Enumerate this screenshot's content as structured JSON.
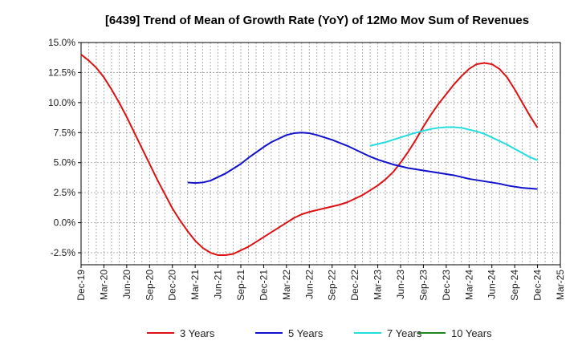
{
  "chart_data": {
    "type": "line",
    "title": "[6439]  Trend of Mean of Growth Rate (YoY) of 12Mo Mov Sum of Revenues",
    "xlabel": "",
    "ylabel": "",
    "x_tick_labels": [
      "Dec-19",
      "Mar-20",
      "Jun-20",
      "Sep-20",
      "Dec-20",
      "Mar-21",
      "Jun-21",
      "Sep-21",
      "Dec-21",
      "Mar-22",
      "Jun-22",
      "Sep-22",
      "Dec-22",
      "Mar-23",
      "Jun-23",
      "Sep-23",
      "Dec-23",
      "Mar-24",
      "Jun-24",
      "Sep-24",
      "Dec-24",
      "Mar-25"
    ],
    "y_tick_labels": [
      "15.0%",
      "12.5%",
      "10.0%",
      "7.5%",
      "5.0%",
      "2.5%",
      "0.0%",
      "-2.5%"
    ],
    "y_ticks": [
      15.0,
      12.5,
      10.0,
      7.5,
      5.0,
      2.5,
      0.0,
      -2.5
    ],
    "ylim": [
      -3.5,
      15.0
    ],
    "x_range_months": [
      0,
      63
    ],
    "grid": true,
    "legend_position": "bottom",
    "series": [
      {
        "name": "3 Years",
        "color": "#dd1111",
        "points": [
          [
            0,
            14.0
          ],
          [
            1,
            13.5
          ],
          [
            2,
            12.9
          ],
          [
            3,
            12.1
          ],
          [
            4,
            11.1
          ],
          [
            5,
            10.0
          ],
          [
            6,
            8.8
          ],
          [
            7,
            7.5
          ],
          [
            8,
            6.2
          ],
          [
            9,
            4.9
          ],
          [
            10,
            3.6
          ],
          [
            11,
            2.4
          ],
          [
            12,
            1.2
          ],
          [
            13,
            0.2
          ],
          [
            14,
            -0.7
          ],
          [
            15,
            -1.5
          ],
          [
            16,
            -2.1
          ],
          [
            17,
            -2.5
          ],
          [
            18,
            -2.7
          ],
          [
            19,
            -2.7
          ],
          [
            20,
            -2.6
          ],
          [
            21,
            -2.3
          ],
          [
            22,
            -2.0
          ],
          [
            23,
            -1.6
          ],
          [
            24,
            -1.2
          ],
          [
            25,
            -0.8
          ],
          [
            26,
            -0.4
          ],
          [
            27,
            0.0
          ],
          [
            28,
            0.4
          ],
          [
            29,
            0.7
          ],
          [
            30,
            0.9
          ],
          [
            31,
            1.05
          ],
          [
            32,
            1.2
          ],
          [
            33,
            1.35
          ],
          [
            34,
            1.5
          ],
          [
            35,
            1.7
          ],
          [
            36,
            2.0
          ],
          [
            37,
            2.3
          ],
          [
            38,
            2.7
          ],
          [
            39,
            3.1
          ],
          [
            40,
            3.6
          ],
          [
            41,
            4.2
          ],
          [
            42,
            5.0
          ],
          [
            43,
            5.9
          ],
          [
            44,
            6.9
          ],
          [
            45,
            8.0
          ],
          [
            46,
            9.0
          ],
          [
            47,
            9.9
          ],
          [
            48,
            10.7
          ],
          [
            49,
            11.5
          ],
          [
            50,
            12.2
          ],
          [
            51,
            12.8
          ],
          [
            52,
            13.2
          ],
          [
            53,
            13.3
          ],
          [
            54,
            13.2
          ],
          [
            55,
            12.8
          ],
          [
            56,
            12.1
          ],
          [
            57,
            11.1
          ],
          [
            58,
            10.0
          ],
          [
            59,
            8.9
          ],
          [
            60,
            7.9
          ]
        ]
      },
      {
        "name": "5 Years",
        "color": "#1111cc",
        "points": [
          [
            14,
            3.35
          ],
          [
            15,
            3.3
          ],
          [
            16,
            3.35
          ],
          [
            17,
            3.5
          ],
          [
            18,
            3.8
          ],
          [
            19,
            4.1
          ],
          [
            20,
            4.5
          ],
          [
            21,
            4.9
          ],
          [
            22,
            5.4
          ],
          [
            23,
            5.85
          ],
          [
            24,
            6.3
          ],
          [
            25,
            6.7
          ],
          [
            26,
            7.0
          ],
          [
            27,
            7.3
          ],
          [
            28,
            7.45
          ],
          [
            29,
            7.5
          ],
          [
            30,
            7.45
          ],
          [
            31,
            7.3
          ],
          [
            32,
            7.1
          ],
          [
            33,
            6.9
          ],
          [
            34,
            6.65
          ],
          [
            35,
            6.4
          ],
          [
            36,
            6.1
          ],
          [
            37,
            5.8
          ],
          [
            38,
            5.5
          ],
          [
            39,
            5.25
          ],
          [
            40,
            5.05
          ],
          [
            41,
            4.85
          ],
          [
            42,
            4.7
          ],
          [
            43,
            4.55
          ],
          [
            44,
            4.45
          ],
          [
            45,
            4.35
          ],
          [
            46,
            4.25
          ],
          [
            47,
            4.15
          ],
          [
            48,
            4.05
          ],
          [
            49,
            3.95
          ],
          [
            50,
            3.8
          ],
          [
            51,
            3.65
          ],
          [
            52,
            3.55
          ],
          [
            53,
            3.45
          ],
          [
            54,
            3.35
          ],
          [
            55,
            3.25
          ],
          [
            56,
            3.1
          ],
          [
            57,
            3.0
          ],
          [
            58,
            2.9
          ],
          [
            59,
            2.85
          ],
          [
            60,
            2.8
          ]
        ]
      },
      {
        "name": "7 Years",
        "color": "#22dddd",
        "points": [
          [
            38,
            6.4
          ],
          [
            39,
            6.55
          ],
          [
            40,
            6.7
          ],
          [
            41,
            6.9
          ],
          [
            42,
            7.1
          ],
          [
            43,
            7.3
          ],
          [
            44,
            7.5
          ],
          [
            45,
            7.65
          ],
          [
            46,
            7.8
          ],
          [
            47,
            7.9
          ],
          [
            48,
            7.95
          ],
          [
            49,
            7.95
          ],
          [
            50,
            7.9
          ],
          [
            51,
            7.75
          ],
          [
            52,
            7.6
          ],
          [
            53,
            7.4
          ],
          [
            54,
            7.1
          ],
          [
            55,
            6.8
          ],
          [
            56,
            6.5
          ],
          [
            57,
            6.15
          ],
          [
            58,
            5.8
          ],
          [
            59,
            5.45
          ],
          [
            60,
            5.2
          ]
        ]
      },
      {
        "name": "10 Years",
        "color": "#228822",
        "points": []
      }
    ]
  }
}
